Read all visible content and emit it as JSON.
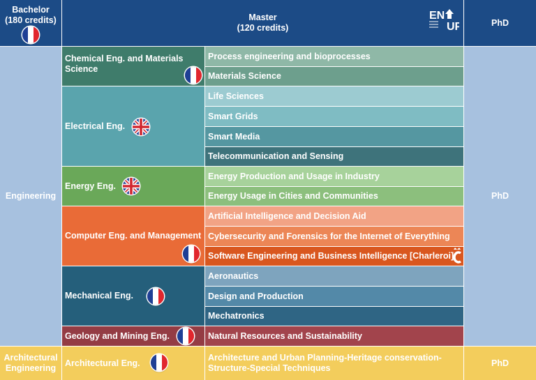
{
  "header": {
    "bachelor": "Bachelor",
    "bachelor_credits": "(180 credits)",
    "master": "Master",
    "master_credits": "(120 credits)",
    "phd": "PhD",
    "logo_text": "ENGUP"
  },
  "fields": {
    "engineering": "Engineering",
    "engineering_phd": "PhD",
    "architectural": "Architectural Engineering",
    "architectural_phd": "PhD"
  },
  "departments": [
    {
      "label": "Chemical Eng. and Materials Science",
      "flag": "france",
      "color": "#3f7c6b"
    },
    {
      "label": "Electrical Eng.",
      "flag": "uk",
      "color": "#5aa4ad"
    },
    {
      "label": "Energy Eng.",
      "flag": "uk",
      "color": "#6aa859"
    },
    {
      "label": "Computer Eng. and Management",
      "flag": "france",
      "color": "#e96b37"
    },
    {
      "label": "Mechanical Eng.",
      "flag": "france",
      "color": "#255f7b"
    },
    {
      "label": "Geology and Mining Eng.",
      "flag": "france",
      "color": "#943c44"
    },
    {
      "label": "Architectural Eng.",
      "flag": "france",
      "color": "#f3cd5c"
    }
  ],
  "specializations": [
    {
      "label": "Process engineering and bioprocesses",
      "color": "#8fb8a7"
    },
    {
      "label": "Materials Science",
      "color": "#6d9f8d"
    },
    {
      "label": "Life Sciences",
      "color": "#9ccbd1"
    },
    {
      "label": "Smart Grids",
      "color": "#7fbcc3"
    },
    {
      "label": "Smart Media",
      "color": "#5597a1"
    },
    {
      "label": "Telecommunication and Sensing",
      "color": "#3e737b"
    },
    {
      "label": "Energy Production and Usage in Industry",
      "color": "#a7d29b"
    },
    {
      "label": "Energy Usage in Cities and Communities",
      "color": "#8cbf7d"
    },
    {
      "label": "Artificial Intelligence and Decision Aid",
      "color": "#f2a385"
    },
    {
      "label": "Cybersecurity and Forensics for the Internet of Everything",
      "color": "#ec8656"
    },
    {
      "label": "Software Engineering and Business Intelligence [Charleroi]",
      "color": "#d9571f"
    },
    {
      "label": "Aeronautics",
      "color": "#7ea4be"
    },
    {
      "label": "Design and Production",
      "color": "#5389a8"
    },
    {
      "label": "Mechatronics",
      "color": "#2f6584"
    },
    {
      "label": "Natural Resources and Sustainability",
      "color": "#a2444c"
    },
    {
      "label": "Architecture and Urban Planning-Heritage conservation-Structure-Special Techniques",
      "color": "#f3cd5c"
    }
  ],
  "colors": {
    "header": "#1c4b86",
    "engineering": "#a7c1df",
    "architectural": "#f3cd5c"
  }
}
